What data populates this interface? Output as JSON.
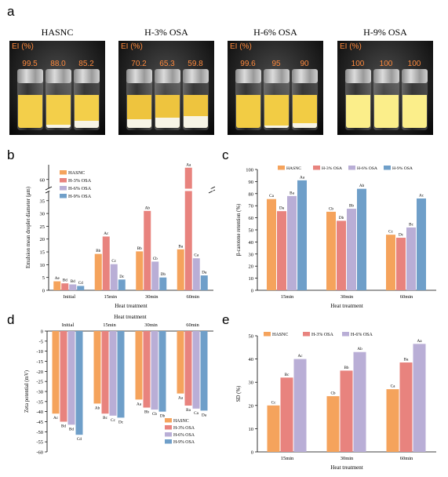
{
  "panel_labels": {
    "a": "a",
    "b": "b",
    "c": "c",
    "d": "d",
    "e": "e"
  },
  "panel_a": {
    "ei_label": "EI (%)",
    "samples": [
      {
        "name": "HASNC",
        "values": [
          "99.5",
          "88.0",
          "85.2"
        ],
        "emulsion_color": "#f3cf4a",
        "cream_fraction": [
          0.0,
          0.04,
          0.1
        ]
      },
      {
        "name": "H-3% OSA",
        "values": [
          "70.2",
          "65.3",
          "59.8"
        ],
        "emulsion_color": "#eec43e",
        "cream_fraction": [
          0.12,
          0.14,
          0.16
        ]
      },
      {
        "name": "H-6% OSA",
        "values": [
          "99.6",
          "95",
          "90"
        ],
        "emulsion_color": "#f2cc44",
        "cream_fraction": [
          0.0,
          0.03,
          0.06
        ]
      },
      {
        "name": "H-9% OSA",
        "values": [
          "100",
          "100",
          "100"
        ],
        "emulsion_color": "#fbee8a",
        "cream_fraction": [
          0,
          0,
          0
        ]
      }
    ]
  },
  "colors": {
    "HASNC": "#f5a35c",
    "H-3% OSA": "#e8837e",
    "H-6% OSA": "#b9aed6",
    "H-9% OSA": "#6f9fc9"
  },
  "chart_data": [
    {
      "id": "b",
      "type": "bar",
      "xlabel": "Heat treatment",
      "ylabel": "Emulsion mean droplet diameter (μm)",
      "categories": [
        "Initial",
        "15min",
        "30min",
        "60min"
      ],
      "broken_axis": {
        "lower_ticks": [
          0,
          5,
          10,
          15,
          20,
          25,
          30,
          35
        ],
        "upper_ticks": [
          60
        ],
        "break_from": 36,
        "break_to": 57
      },
      "series": [
        {
          "name": "HASNC",
          "values": [
            3.5,
            14.2,
            15.2,
            16.0
          ],
          "labels": [
            "Ae",
            "Bb",
            "Bb",
            "Ba"
          ]
        },
        {
          "name": "H-3% OSA",
          "values": [
            2.7,
            21.0,
            31.0,
            64.0
          ],
          "labels": [
            "Bd",
            "Ac",
            "Ab",
            "Aa"
          ]
        },
        {
          "name": "H-6% OSA",
          "values": [
            2.3,
            10.2,
            11.2,
            12.5
          ],
          "labels": [
            "Bd",
            "Cc",
            "Cb",
            "Ca"
          ]
        },
        {
          "name": "H-9% OSA",
          "values": [
            1.7,
            4.2,
            5.0,
            5.8
          ],
          "labels": [
            "Cd",
            "Dc",
            "Db",
            "Da"
          ]
        }
      ],
      "legend": "top-left"
    },
    {
      "id": "c",
      "type": "bar",
      "xlabel": "Heat treatment",
      "ylabel": "β-carotene retention (%)",
      "ylim": [
        0,
        100
      ],
      "yticks": [
        0,
        10,
        20,
        30,
        40,
        50,
        60,
        70,
        80,
        90,
        100
      ],
      "categories": [
        "15min",
        "30min",
        "60min"
      ],
      "series": [
        {
          "name": "HASNC",
          "values": [
            75.5,
            65.0,
            46.0
          ],
          "labels": [
            "Ca",
            "Cb",
            "Cc"
          ]
        },
        {
          "name": "H-3% OSA",
          "values": [
            65.5,
            57.5,
            43.5
          ],
          "labels": [
            "Da",
            "Db",
            "Dc"
          ]
        },
        {
          "name": "H-6% OSA",
          "values": [
            78.0,
            67.5,
            52.0
          ],
          "labels": [
            "Ba",
            "Bb",
            "Bc"
          ]
        },
        {
          "name": "H-9% OSA",
          "values": [
            91.0,
            84.0,
            76.0
          ],
          "labels": [
            "Aa",
            "Ab",
            "Ac"
          ]
        }
      ],
      "legend": "top"
    },
    {
      "id": "d",
      "type": "bar",
      "xlabel": "Heat treatment",
      "ylabel": "Zeta potential (mV)",
      "ylim": [
        -60,
        0
      ],
      "yticks": [
        0,
        -5,
        -10,
        -15,
        -20,
        -25,
        -30,
        -35,
        -40,
        -45,
        -50,
        -55,
        -60
      ],
      "categories": [
        "Initial",
        "15min",
        "30min",
        "60min"
      ],
      "series": [
        {
          "name": "HASNC",
          "values": [
            -41.0,
            -36.0,
            -34.0,
            -31.0
          ],
          "labels": [
            "Ac",
            "Ab",
            "Aa",
            "Aa"
          ]
        },
        {
          "name": "H-3% OSA",
          "values": [
            -45.0,
            -41.0,
            -38.0,
            -37.0
          ],
          "labels": [
            "Bd",
            "Bc",
            "Bb",
            "Ba"
          ]
        },
        {
          "name": "H-6% OSA",
          "values": [
            -46.5,
            -42.0,
            -39.0,
            -38.5
          ],
          "labels": [
            "Bd",
            "Cc",
            "Cb",
            "Ca"
          ]
        },
        {
          "name": "H-9% OSA",
          "values": [
            -51.5,
            -43.0,
            -40.0,
            -39.5
          ],
          "labels": [
            "Cd",
            "Dc",
            "Db",
            "Da"
          ]
        }
      ],
      "legend": "bottom-right"
    },
    {
      "id": "e",
      "type": "bar",
      "xlabel": "Heat treatment",
      "ylabel": "SD (%)",
      "ylim": [
        0,
        50
      ],
      "yticks": [
        0,
        10,
        20,
        30,
        40,
        50
      ],
      "categories": [
        "15min",
        "30min",
        "60min"
      ],
      "series": [
        {
          "name": "HASNC",
          "values": [
            20.0,
            24.0,
            27.0
          ],
          "labels": [
            "Cc",
            "Cb",
            "Ca"
          ]
        },
        {
          "name": "H-3% OSA",
          "values": [
            32.0,
            35.0,
            38.5
          ],
          "labels": [
            "Bc",
            "Bb",
            "Ba"
          ]
        },
        {
          "name": "H-6% OSA",
          "values": [
            40.0,
            43.0,
            46.5
          ],
          "labels": [
            "Ac",
            "Ab",
            "Aa"
          ]
        }
      ],
      "legend": "top-left"
    }
  ]
}
